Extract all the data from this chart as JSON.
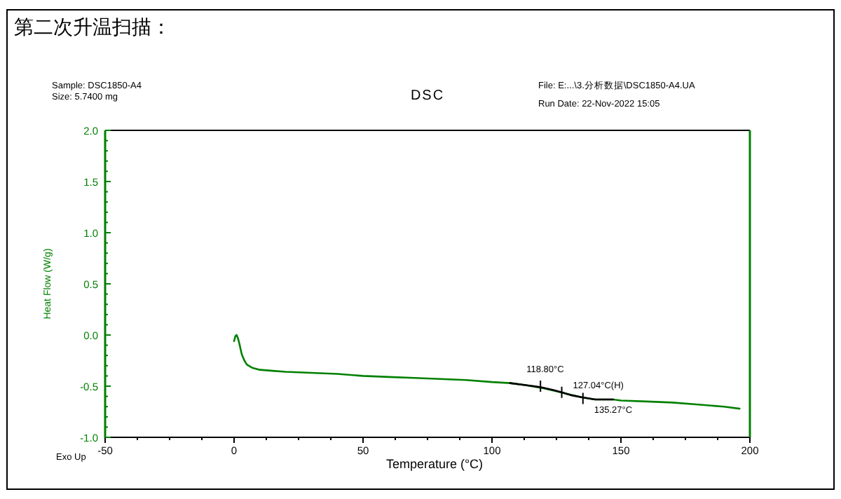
{
  "chart_data": {
    "type": "line",
    "title": "DSC",
    "xlabel": "Temperature (°C)",
    "ylabel": "Heat Flow (W/g)",
    "annotations": [
      "第二次升温扫描：",
      "Sample: DSC1850-A4",
      "Size:  5.7400 mg",
      "File: E:...\\3.分析数据\\DSC1850-A4.UA",
      "Run Date: 22-Nov-2022 15:05",
      "Exo Up",
      {
        "text": "118.80°C",
        "x": 118.8,
        "y": -0.5
      },
      {
        "text": "127.04°C(H)",
        "x": 127.04,
        "y": -0.56
      },
      {
        "text": "135.27°C",
        "x": 135.27,
        "y": -0.62
      }
    ],
    "series": [
      {
        "color": "#008000",
        "x": [
          0,
          0.5,
          1,
          1.5,
          2,
          3,
          4,
          5,
          7,
          10,
          15,
          20,
          30,
          40,
          50,
          60,
          70,
          80,
          90,
          100,
          107,
          113,
          120,
          125,
          130,
          135,
          140,
          147,
          150,
          160,
          170,
          180,
          185,
          190,
          196
        ],
        "values": [
          -0.06,
          -0.01,
          0.0,
          -0.03,
          -0.08,
          -0.19,
          -0.25,
          -0.29,
          -0.32,
          -0.34,
          -0.35,
          -0.36,
          -0.37,
          -0.38,
          -0.4,
          -0.41,
          -0.42,
          -0.43,
          -0.44,
          -0.46,
          -0.47,
          -0.49,
          -0.52,
          -0.55,
          -0.58,
          -0.61,
          -0.63,
          -0.63,
          -0.64,
          -0.65,
          -0.66,
          -0.68,
          -0.69,
          -0.7,
          -0.72
        ]
      },
      {
        "color": "#000000",
        "x": [
          107,
          113,
          119,
          124,
          127,
          131,
          135,
          140,
          147
        ],
        "values": [
          -0.47,
          -0.49,
          -0.51,
          -0.54,
          -0.56,
          -0.59,
          -0.61,
          -0.63,
          -0.63
        ]
      }
    ],
    "xlim": [
      -50,
      200
    ],
    "ylim": [
      -1.0,
      2.0
    ],
    "xticks": [
      -50,
      0,
      50,
      100,
      150,
      200
    ],
    "yticks": [
      {
        "value": -1,
        "label": "-1.0"
      },
      {
        "value": -0.5,
        "label": "-0.5"
      },
      {
        "value": 0,
        "label": "0.0"
      },
      {
        "value": 0.5,
        "label": "0.5"
      },
      {
        "value": 1,
        "label": "1.0"
      },
      {
        "value": 1.5,
        "label": "1.5"
      },
      {
        "value": 2,
        "label": "2.0"
      }
    ]
  }
}
